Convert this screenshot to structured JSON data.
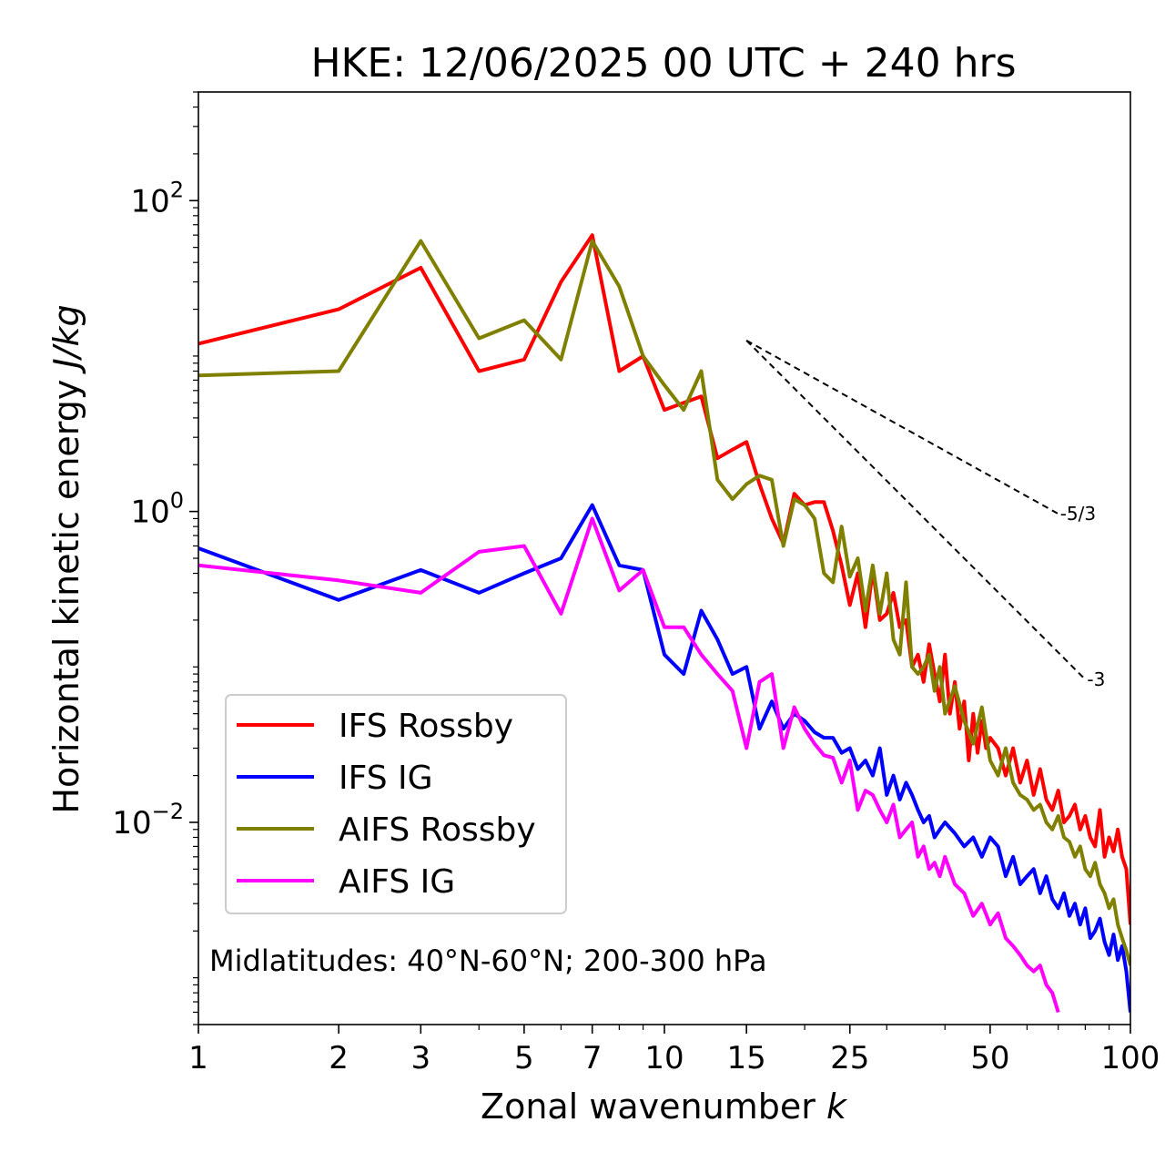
{
  "chart_data": {
    "type": "line",
    "title": "HKE: 12/06/2025 00 UTC + 240 hrs",
    "xlabel": "Zonal wavenumber",
    "xlabel_var": "k",
    "ylabel": "Horizontal kinetic energy",
    "ylabel_unit": "J/kg",
    "xscale": "log",
    "yscale": "log",
    "xlim": [
      1,
      100
    ],
    "ylim": [
      0.0005,
      500
    ],
    "x_ticks": [
      1,
      2,
      3,
      5,
      7,
      10,
      15,
      25,
      50,
      100
    ],
    "x_tick_labels": [
      "1",
      "2",
      "3",
      "5",
      "7",
      "10",
      "15",
      "25",
      "50",
      "100"
    ],
    "y_ticks": [
      0.01,
      1,
      100
    ],
    "y_tick_labels": [
      {
        "base": "10",
        "exp": "−2"
      },
      {
        "base": "10",
        "exp": "0"
      },
      {
        "base": "10",
        "exp": "2"
      }
    ],
    "annotation": "Midlatitudes: 40°N-60°N; 200-300 hPa",
    "legend_position": "lower-left",
    "reference_slopes": [
      {
        "label": "-5/3",
        "slope": -1.6667,
        "x": [
          15,
          70
        ],
        "y_start": 12.6
      },
      {
        "label": "-3",
        "slope": -3,
        "x": [
          15,
          80
        ],
        "y_start": 12.6
      }
    ],
    "series": [
      {
        "name": "IFS Rossby",
        "color": "#ff0000",
        "x": [
          1,
          2,
          3,
          4,
          5,
          6,
          7,
          8,
          9,
          10,
          11,
          12,
          13,
          14,
          15,
          16,
          17,
          18,
          19,
          20,
          21,
          22,
          23,
          24,
          25,
          26,
          27,
          28,
          29,
          30,
          31,
          32,
          33,
          34,
          35,
          36,
          37,
          38,
          39,
          40,
          41,
          42,
          43,
          44,
          45,
          46,
          47,
          48,
          49,
          50,
          52,
          54,
          56,
          58,
          60,
          62,
          64,
          66,
          68,
          70,
          72,
          74,
          76,
          78,
          80,
          82,
          84,
          86,
          88,
          90,
          92,
          94,
          96,
          98,
          100
        ],
        "values": [
          12.0,
          20.0,
          37.0,
          8.0,
          9.5,
          30.0,
          60.0,
          8.0,
          10.0,
          4.5,
          5.0,
          5.5,
          2.2,
          2.5,
          2.8,
          1.5,
          0.9,
          0.62,
          1.3,
          1.1,
          1.15,
          1.15,
          0.75,
          0.45,
          0.25,
          0.4,
          0.18,
          0.42,
          0.2,
          0.22,
          0.3,
          0.18,
          0.2,
          0.1,
          0.12,
          0.08,
          0.14,
          0.09,
          0.06,
          0.12,
          0.05,
          0.08,
          0.04,
          0.06,
          0.025,
          0.05,
          0.028,
          0.045,
          0.03,
          0.035,
          0.03,
          0.02,
          0.03,
          0.018,
          0.025,
          0.015,
          0.022,
          0.014,
          0.012,
          0.016,
          0.01,
          0.011,
          0.013,
          0.009,
          0.011,
          0.008,
          0.007,
          0.012,
          0.006,
          0.008,
          0.0065,
          0.009,
          0.006,
          0.005,
          0.0022
        ]
      },
      {
        "name": "IFS IG",
        "color": "#0000ff",
        "x": [
          1,
          2,
          3,
          4,
          5,
          6,
          7,
          8,
          9,
          10,
          11,
          12,
          13,
          14,
          15,
          16,
          17,
          18,
          19,
          20,
          21,
          22,
          23,
          24,
          25,
          26,
          27,
          28,
          29,
          30,
          31,
          32,
          33,
          34,
          35,
          36,
          37,
          38,
          39,
          40,
          42,
          44,
          46,
          48,
          50,
          52,
          54,
          56,
          58,
          60,
          62,
          64,
          66,
          68,
          70,
          72,
          74,
          76,
          78,
          80,
          82,
          84,
          86,
          88,
          90,
          92,
          94,
          96,
          98,
          100
        ],
        "values": [
          0.58,
          0.27,
          0.42,
          0.3,
          0.4,
          0.5,
          1.1,
          0.45,
          0.42,
          0.12,
          0.09,
          0.23,
          0.15,
          0.09,
          0.1,
          0.04,
          0.06,
          0.04,
          0.05,
          0.045,
          0.038,
          0.035,
          0.035,
          0.028,
          0.03,
          0.022,
          0.025,
          0.02,
          0.03,
          0.015,
          0.02,
          0.014,
          0.018,
          0.015,
          0.012,
          0.01,
          0.011,
          0.008,
          0.009,
          0.01,
          0.0085,
          0.007,
          0.008,
          0.006,
          0.008,
          0.007,
          0.0045,
          0.006,
          0.004,
          0.0045,
          0.005,
          0.0035,
          0.0045,
          0.0032,
          0.0028,
          0.0035,
          0.0025,
          0.003,
          0.0022,
          0.0028,
          0.0018,
          0.002,
          0.0024,
          0.0017,
          0.0014,
          0.0019,
          0.0013,
          0.0016,
          0.0011,
          0.0006
        ]
      },
      {
        "name": "AIFS Rossby",
        "color": "#808000",
        "x": [
          1,
          2,
          3,
          4,
          5,
          6,
          7,
          8,
          9,
          10,
          11,
          12,
          13,
          14,
          15,
          16,
          17,
          18,
          19,
          20,
          21,
          22,
          23,
          24,
          25,
          26,
          27,
          28,
          29,
          30,
          31,
          32,
          33,
          34,
          35,
          36,
          37,
          38,
          39,
          40,
          42,
          44,
          46,
          48,
          50,
          52,
          54,
          56,
          58,
          60,
          62,
          64,
          66,
          68,
          70,
          72,
          74,
          76,
          78,
          80,
          82,
          84,
          86,
          88,
          90,
          92,
          94,
          96,
          98,
          100
        ],
        "values": [
          7.5,
          8.0,
          55.0,
          13.0,
          17.0,
          9.5,
          55.0,
          28.0,
          10.0,
          6.5,
          4.5,
          8.0,
          1.6,
          1.2,
          1.5,
          1.7,
          1.6,
          0.6,
          1.2,
          1.1,
          0.9,
          0.4,
          0.35,
          0.8,
          0.38,
          0.5,
          0.23,
          0.45,
          0.22,
          0.4,
          0.15,
          0.12,
          0.35,
          0.1,
          0.09,
          0.1,
          0.12,
          0.07,
          0.1,
          0.05,
          0.075,
          0.045,
          0.032,
          0.055,
          0.025,
          0.02,
          0.03,
          0.018,
          0.015,
          0.014,
          0.012,
          0.013,
          0.01,
          0.009,
          0.011,
          0.008,
          0.0075,
          0.006,
          0.007,
          0.005,
          0.0045,
          0.0055,
          0.004,
          0.0035,
          0.0028,
          0.0032,
          0.0022,
          0.0018,
          0.0015,
          0.0012
        ]
      },
      {
        "name": "AIFS IG",
        "color": "#ff00ff",
        "x": [
          1,
          2,
          3,
          4,
          5,
          6,
          7,
          8,
          9,
          10,
          11,
          12,
          13,
          14,
          15,
          16,
          17,
          18,
          19,
          20,
          21,
          22,
          23,
          24,
          25,
          26,
          27,
          28,
          29,
          30,
          31,
          32,
          33,
          34,
          35,
          36,
          37,
          38,
          39,
          40,
          42,
          44,
          46,
          48,
          50,
          52,
          54,
          56,
          58,
          60,
          62,
          64,
          66,
          68,
          70
        ],
        "values": [
          0.45,
          0.36,
          0.3,
          0.55,
          0.6,
          0.22,
          0.9,
          0.31,
          0.42,
          0.18,
          0.18,
          0.12,
          0.09,
          0.07,
          0.03,
          0.08,
          0.09,
          0.03,
          0.055,
          0.04,
          0.032,
          0.027,
          0.026,
          0.018,
          0.025,
          0.012,
          0.016,
          0.015,
          0.012,
          0.01,
          0.013,
          0.008,
          0.009,
          0.01,
          0.006,
          0.007,
          0.005,
          0.0055,
          0.0045,
          0.006,
          0.004,
          0.0035,
          0.0025,
          0.003,
          0.0022,
          0.0026,
          0.0018,
          0.0016,
          0.0014,
          0.0012,
          0.0011,
          0.0012,
          0.0009,
          0.0008,
          0.0006
        ]
      }
    ]
  }
}
